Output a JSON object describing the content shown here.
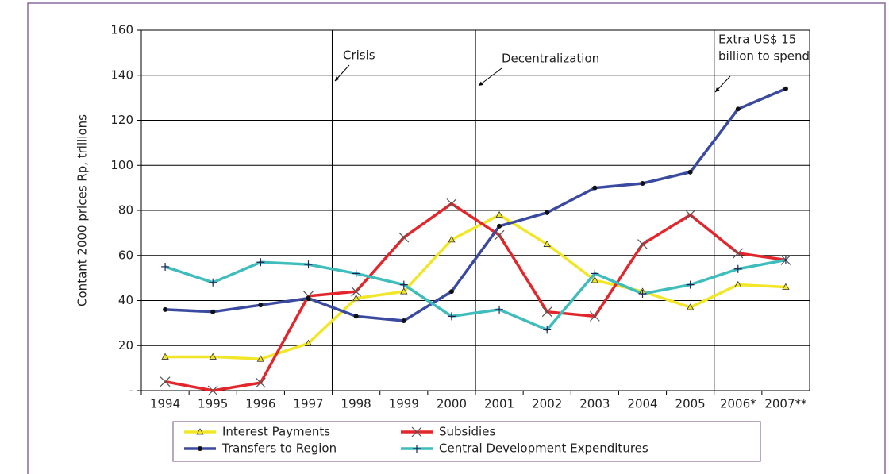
{
  "chart_data": {
    "type": "line",
    "y_label": "Contant 2000 prices Rp, trillions",
    "categories": [
      "1994",
      "1995",
      "1996",
      "1997",
      "1998",
      "1999",
      "2000",
      "2001",
      "2002",
      "2003",
      "2004",
      "2005",
      "2006*",
      "2007**"
    ],
    "series": [
      {
        "name": "Interest Payments",
        "color": "#f2e629",
        "marker": "triangle",
        "values": [
          15,
          15,
          14,
          21,
          41,
          44,
          67,
          78,
          65,
          49,
          44,
          37,
          47,
          46
        ]
      },
      {
        "name": "Subsidies",
        "color": "#e3262b",
        "marker": "x",
        "values": [
          4,
          0,
          3.5,
          42,
          44,
          68,
          83,
          69,
          35,
          33,
          65,
          78,
          61,
          58
        ]
      },
      {
        "name": "Transfers to Region",
        "color": "#3a4aa0",
        "marker": "dot",
        "values": [
          36,
          35,
          38,
          41,
          33,
          31,
          44,
          73,
          79,
          90,
          92,
          97,
          125,
          134
        ]
      },
      {
        "name": "Central Development Expenditures",
        "color": "#3fbcbc",
        "marker": "plus",
        "values": [
          55,
          48,
          57,
          56,
          52,
          47,
          33,
          36,
          27,
          52,
          43,
          47,
          54,
          58
        ]
      }
    ],
    "ylim": [
      0,
      160
    ],
    "yticks": [
      {
        "value": 0,
        "label": "-"
      },
      20,
      40,
      60,
      80,
      100,
      120,
      140,
      160
    ],
    "grid": true,
    "annotations": [
      {
        "lines": [
          "Crisis"
        ]
      },
      {
        "lines": [
          "Decentralization"
        ]
      },
      {
        "lines": [
          "Extra US$ 15",
          "billion to spend"
        ]
      }
    ]
  }
}
